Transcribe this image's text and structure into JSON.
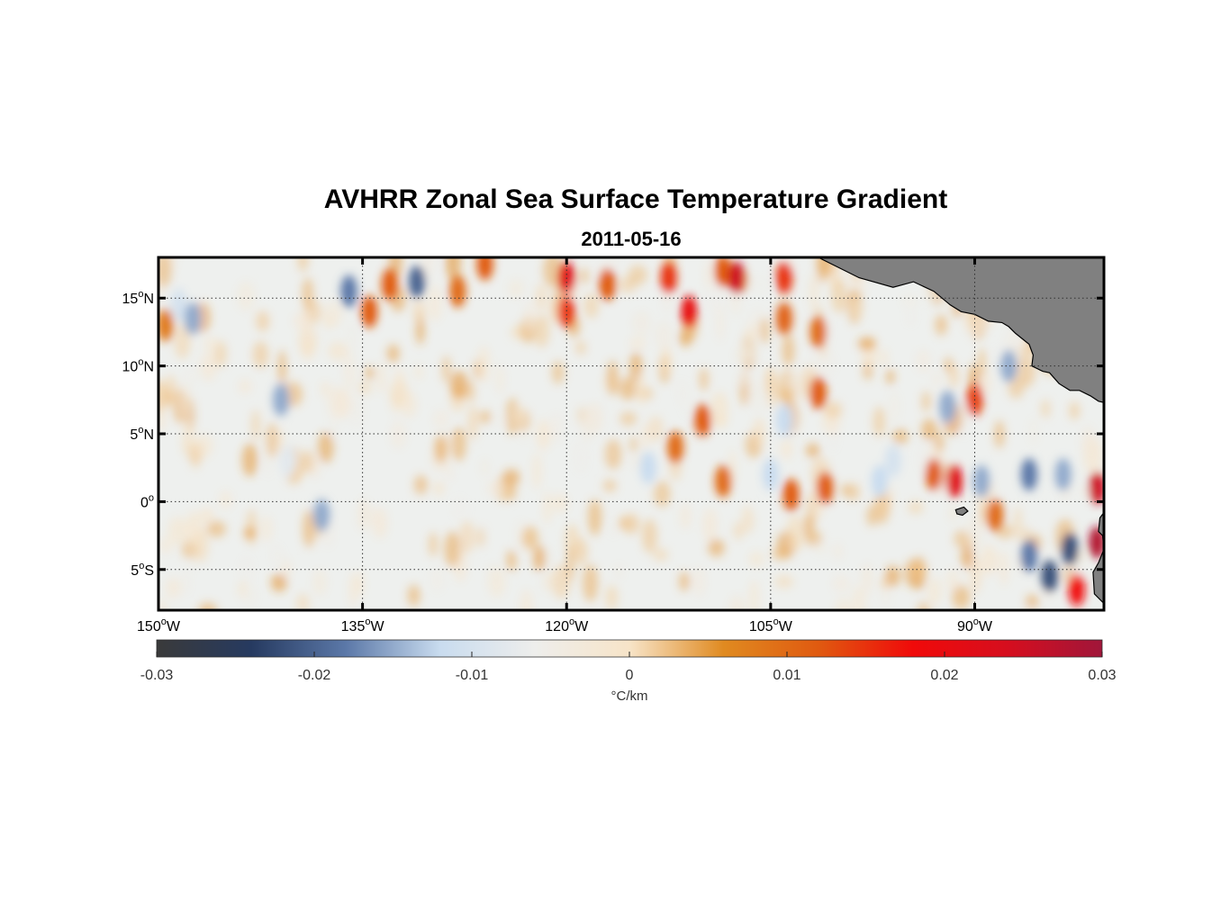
{
  "chart_data": {
    "type": "heatmap",
    "title": "AVHRR Zonal Sea Surface Temperature Gradient",
    "subtitle": "2011-05-16",
    "x_axis": {
      "range": [
        -150,
        -80.5
      ],
      "ticks": [
        {
          "value": -150,
          "num": "150",
          "hemi": "W"
        },
        {
          "value": -135,
          "num": "135",
          "hemi": "W"
        },
        {
          "value": -120,
          "num": "120",
          "hemi": "W"
        },
        {
          "value": -105,
          "num": "105",
          "hemi": "W"
        },
        {
          "value": -90,
          "num": "90",
          "hemi": "W"
        }
      ]
    },
    "y_axis": {
      "range": [
        -8,
        18
      ],
      "ticks": [
        {
          "value": 15,
          "num": "15",
          "hemi": "N"
        },
        {
          "value": 10,
          "num": "10",
          "hemi": "N"
        },
        {
          "value": 5,
          "num": "5",
          "hemi": "N"
        },
        {
          "value": 0,
          "num": "0",
          "hemi": ""
        },
        {
          "value": -5,
          "num": "5",
          "hemi": "S"
        }
      ]
    },
    "grid": true,
    "colorbar": {
      "range": [
        -0.03,
        0.03
      ],
      "ticks": [
        -0.03,
        -0.02,
        -0.01,
        0,
        0.01,
        0.02,
        0.03
      ],
      "tick_labels": [
        "-0.03",
        "-0.02",
        "-0.01",
        "0",
        "0.01",
        "0.02",
        "0.03"
      ],
      "label": "°C/km",
      "colors": [
        "#3a3a3a",
        "#263a60",
        "#5b78a8",
        "#c9dcef",
        "#eeeeec",
        "#f7e4c8",
        "#e08a20",
        "#e05a10",
        "#f00a0a",
        "#d60e1e",
        "#a0163a"
      ]
    },
    "land_color": "#808080",
    "features": [
      {
        "lon": -148.5,
        "lat": 14.5,
        "value": -0.01
      },
      {
        "lon": -147.5,
        "lat": 13.5,
        "value": -0.015
      },
      {
        "lon": -149.5,
        "lat": 13.0,
        "value": 0.008
      },
      {
        "lon": -136.0,
        "lat": 15.5,
        "value": -0.018
      },
      {
        "lon": -133.0,
        "lat": 16.0,
        "value": 0.012
      },
      {
        "lon": -131.0,
        "lat": 16.2,
        "value": -0.02
      },
      {
        "lon": -128.0,
        "lat": 15.5,
        "value": 0.01
      },
      {
        "lon": -126.0,
        "lat": 17.5,
        "value": 0.012
      },
      {
        "lon": -120.0,
        "lat": 16.5,
        "value": 0.022
      },
      {
        "lon": -120.0,
        "lat": 14.0,
        "value": 0.015
      },
      {
        "lon": -117.0,
        "lat": 16.0,
        "value": 0.012
      },
      {
        "lon": -112.5,
        "lat": 16.5,
        "value": 0.015
      },
      {
        "lon": -111.0,
        "lat": 14.0,
        "value": 0.02
      },
      {
        "lon": -108.5,
        "lat": 17.0,
        "value": 0.012
      },
      {
        "lon": -107.5,
        "lat": 16.5,
        "value": 0.025
      },
      {
        "lon": -104.0,
        "lat": 16.5,
        "value": 0.015
      },
      {
        "lon": -104.0,
        "lat": 13.5,
        "value": 0.011
      },
      {
        "lon": -101.5,
        "lat": 12.5,
        "value": 0.01
      },
      {
        "lon": -141.0,
        "lat": 7.5,
        "value": -0.015
      },
      {
        "lon": -140.5,
        "lat": 3.0,
        "value": -0.008
      },
      {
        "lon": -134.5,
        "lat": 14.0,
        "value": 0.012
      },
      {
        "lon": -110.0,
        "lat": 6.0,
        "value": 0.012
      },
      {
        "lon": -112.0,
        "lat": 4.0,
        "value": 0.01
      },
      {
        "lon": -114.0,
        "lat": 2.5,
        "value": -0.012
      },
      {
        "lon": -108.5,
        "lat": 1.5,
        "value": 0.01
      },
      {
        "lon": -105.0,
        "lat": 2.0,
        "value": -0.012
      },
      {
        "lon": -103.5,
        "lat": 0.5,
        "value": 0.012
      },
      {
        "lon": -101.0,
        "lat": 1.0,
        "value": 0.012
      },
      {
        "lon": -101.5,
        "lat": 8.0,
        "value": 0.012
      },
      {
        "lon": -104.0,
        "lat": 6.0,
        "value": -0.012
      },
      {
        "lon": -92.0,
        "lat": 7.0,
        "value": -0.015
      },
      {
        "lon": -90.0,
        "lat": 7.5,
        "value": 0.014
      },
      {
        "lon": -87.5,
        "lat": 10.0,
        "value": -0.015
      },
      {
        "lon": -93.0,
        "lat": 2.0,
        "value": 0.012
      },
      {
        "lon": -91.5,
        "lat": 1.5,
        "value": 0.022
      },
      {
        "lon": -89.5,
        "lat": 1.5,
        "value": -0.015
      },
      {
        "lon": -86.0,
        "lat": 2.0,
        "value": -0.018
      },
      {
        "lon": -83.5,
        "lat": 2.0,
        "value": -0.015
      },
      {
        "lon": -81.0,
        "lat": 1.0,
        "value": 0.025
      },
      {
        "lon": -83.0,
        "lat": -3.5,
        "value": -0.022
      },
      {
        "lon": -84.5,
        "lat": -5.5,
        "value": -0.022
      },
      {
        "lon": -86.0,
        "lat": -4.0,
        "value": -0.018
      },
      {
        "lon": -82.5,
        "lat": -6.5,
        "value": 0.018
      },
      {
        "lon": -81.0,
        "lat": -3.0,
        "value": 0.028
      },
      {
        "lon": -138.0,
        "lat": -1.0,
        "value": -0.015
      },
      {
        "lon": -97.0,
        "lat": 1.5,
        "value": -0.012
      },
      {
        "lon": -96.0,
        "lat": 3.0,
        "value": -0.01
      },
      {
        "lon": -88.5,
        "lat": -1.0,
        "value": 0.01
      }
    ],
    "land": [
      {
        "name": "central-america",
        "outline": [
          [
            -101.5,
            18
          ],
          [
            -98.5,
            16.5
          ],
          [
            -96,
            15.8
          ],
          [
            -94.5,
            16.2
          ],
          [
            -93,
            15.5
          ],
          [
            -91.8,
            14.5
          ],
          [
            -91,
            14
          ],
          [
            -90,
            13.8
          ],
          [
            -89,
            13.3
          ],
          [
            -88,
            13.2
          ],
          [
            -87.5,
            12.9
          ],
          [
            -87,
            12.4
          ],
          [
            -86,
            11.6
          ],
          [
            -85.7,
            10.8
          ],
          [
            -85.8,
            10
          ],
          [
            -85,
            9.6
          ],
          [
            -84.5,
            9.5
          ],
          [
            -83.8,
            8.7
          ],
          [
            -83,
            8.2
          ],
          [
            -82.3,
            8.2
          ],
          [
            -81.5,
            7.8
          ],
          [
            -80.9,
            7.4
          ],
          [
            -80.5,
            7.3
          ],
          [
            -80.5,
            18
          ]
        ]
      },
      {
        "name": "south-america",
        "outline": [
          [
            -80.5,
            0
          ],
          [
            -80.5,
            -7.5
          ],
          [
            -81.2,
            -6.8
          ],
          [
            -81.3,
            -5.2
          ],
          [
            -80.9,
            -4.5
          ],
          [
            -80.5,
            -3.5
          ],
          [
            -80.6,
            -2.5
          ],
          [
            -80.9,
            -2.2
          ],
          [
            -80.8,
            -1.2
          ],
          [
            -80.5,
            -0.8
          ]
        ]
      },
      {
        "name": "galapagos",
        "outline": [
          [
            -91.4,
            -0.6
          ],
          [
            -90.8,
            -0.4
          ],
          [
            -90.5,
            -0.7
          ],
          [
            -90.9,
            -1.0
          ],
          [
            -91.3,
            -0.9
          ]
        ]
      }
    ]
  }
}
